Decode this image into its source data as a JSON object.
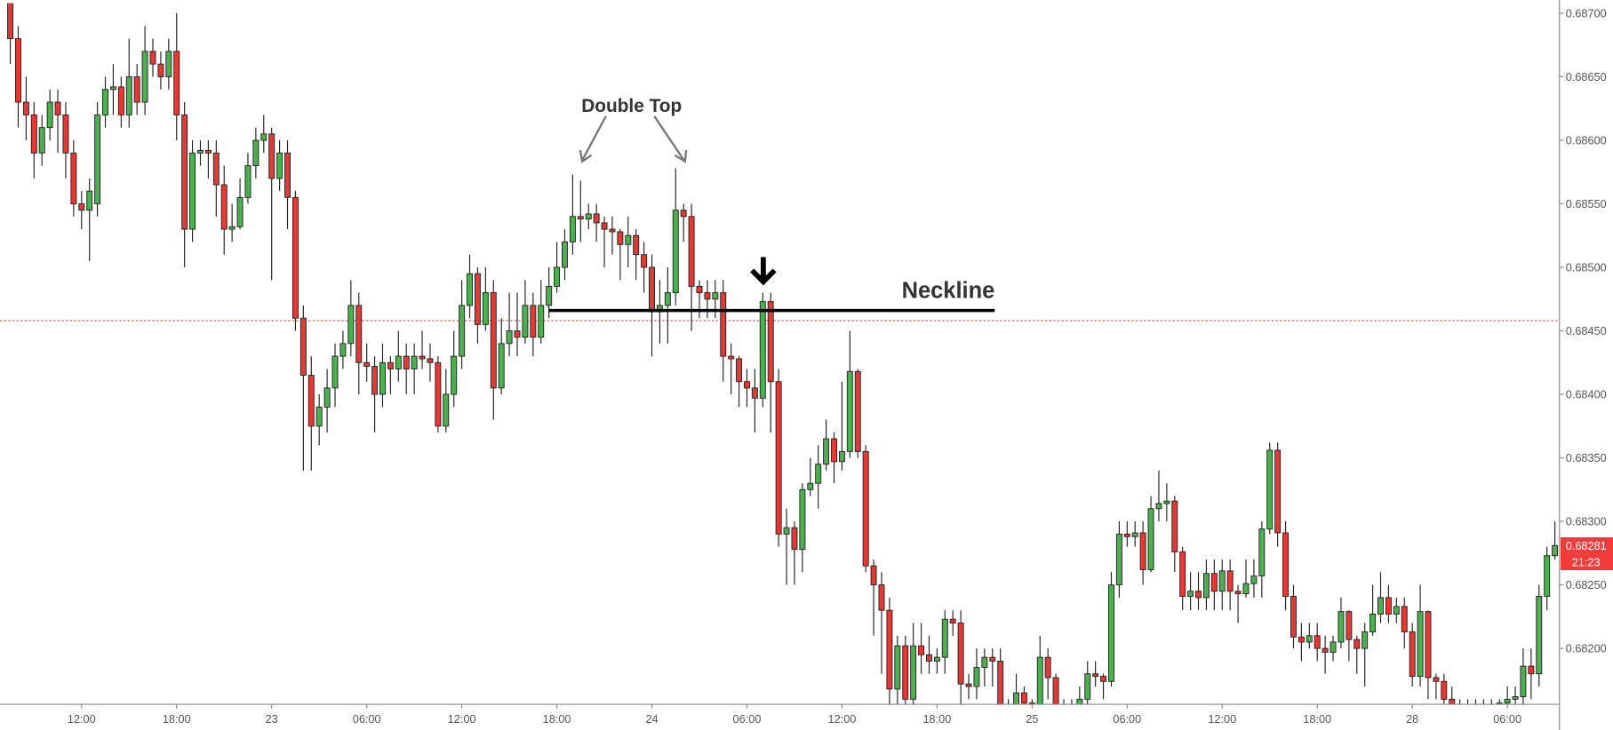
{
  "chart_data": {
    "type": "candlestick",
    "annotations": {
      "double_top": "Double Top",
      "neckline": "Neckline"
    },
    "neckline_level": 0.68466,
    "reference_line": 0.68458,
    "price_tag": {
      "value": 0.68281,
      "label": "0.68281"
    },
    "countdown": "21:23",
    "up_color": "#4caf50",
    "down_color": "#e53935",
    "ylim": [
      0.68156,
      0.68708
    ],
    "yticks": [
      {
        "value": 0.682,
        "label": "0.68200"
      },
      {
        "value": 0.6825,
        "label": "0.68250"
      },
      {
        "value": 0.683,
        "label": "0.68300"
      },
      {
        "value": 0.6835,
        "label": "0.68350"
      },
      {
        "value": 0.684,
        "label": "0.68400"
      },
      {
        "value": 0.6845,
        "label": "0.68450"
      },
      {
        "value": 0.685,
        "label": "0.68500"
      },
      {
        "value": 0.6855,
        "label": "0.68550"
      },
      {
        "value": 0.686,
        "label": "0.68600"
      },
      {
        "value": 0.6865,
        "label": "0.68650"
      },
      {
        "value": 0.687,
        "label": "0.68700"
      }
    ],
    "categories": [
      null,
      null,
      null,
      null,
      null,
      null,
      null,
      null,
      null,
      "12:00",
      null,
      null,
      null,
      null,
      null,
      null,
      null,
      null,
      null,
      null,
      null,
      "18:00",
      null,
      null,
      null,
      null,
      null,
      null,
      null,
      null,
      null,
      null,
      null,
      "23",
      null,
      null,
      null,
      null,
      null,
      null,
      null,
      null,
      null,
      null,
      null,
      "06:00",
      null,
      null,
      null,
      null,
      null,
      null,
      null,
      null,
      null,
      null,
      null,
      "12:00",
      null,
      null,
      null,
      null,
      null,
      null,
      null,
      null,
      null,
      null,
      null,
      "18:00",
      null,
      null,
      null,
      null,
      null,
      null,
      null,
      null,
      null,
      null,
      null,
      "24",
      null,
      null,
      null,
      null,
      null,
      null,
      null,
      null,
      null,
      null,
      null,
      "06:00",
      null,
      null,
      null,
      null,
      null,
      null,
      null,
      null,
      null,
      null,
      null,
      "12:00",
      null,
      null,
      null,
      null,
      null,
      null,
      null,
      null,
      null,
      null,
      null,
      "18:00",
      null,
      null,
      null,
      null,
      null,
      null,
      null,
      null,
      null,
      null,
      null,
      "25",
      null,
      null,
      null,
      null,
      null,
      null,
      null,
      null,
      null,
      null,
      null,
      "06:00",
      null,
      null,
      null,
      null,
      null,
      null,
      null,
      null,
      null,
      null,
      null,
      "12:00",
      null,
      null,
      null,
      null,
      null,
      null,
      null,
      null,
      null,
      null,
      null,
      "18:00",
      null,
      null,
      null,
      null,
      null,
      null,
      null,
      null,
      null,
      null,
      null,
      "28",
      null,
      null,
      null,
      null,
      null,
      null,
      null,
      null,
      null,
      null,
      null,
      "06:00",
      null,
      null,
      null,
      null,
      null,
      null
    ],
    "values": [
      [
        0.6871,
        0.6872,
        0.6866,
        0.6868
      ],
      [
        0.6868,
        0.6869,
        0.6861,
        0.6863
      ],
      [
        0.6863,
        0.6865,
        0.686,
        0.6862
      ],
      [
        0.6862,
        0.6863,
        0.6857,
        0.6859
      ],
      [
        0.6859,
        0.6862,
        0.6858,
        0.6861
      ],
      [
        0.6861,
        0.6864,
        0.686,
        0.6863
      ],
      [
        0.6863,
        0.6864,
        0.6859,
        0.6862
      ],
      [
        0.6862,
        0.6863,
        0.6857,
        0.6859
      ],
      [
        0.6859,
        0.686,
        0.6854,
        0.6855
      ],
      [
        0.6855,
        0.6856,
        0.6853,
        0.68545
      ],
      [
        0.68545,
        0.6857,
        0.68505,
        0.6856
      ],
      [
        0.6855,
        0.6863,
        0.6854,
        0.6862
      ],
      [
        0.6862,
        0.6865,
        0.6861,
        0.6864
      ],
      [
        0.6864,
        0.6866,
        0.6862,
        0.68642
      ],
      [
        0.68642,
        0.6865,
        0.6861,
        0.6862
      ],
      [
        0.6862,
        0.6868,
        0.6861,
        0.6865
      ],
      [
        0.6865,
        0.6866,
        0.6862,
        0.6863
      ],
      [
        0.6863,
        0.6869,
        0.6862,
        0.6867
      ],
      [
        0.6867,
        0.6868,
        0.6865,
        0.6866
      ],
      [
        0.6866,
        0.6867,
        0.6864,
        0.6865
      ],
      [
        0.6865,
        0.6868,
        0.6864,
        0.6867
      ],
      [
        0.6867,
        0.687,
        0.686,
        0.6862
      ],
      [
        0.6862,
        0.6863,
        0.685,
        0.6853
      ],
      [
        0.6853,
        0.686,
        0.6852,
        0.6859
      ],
      [
        0.6859,
        0.686,
        0.6858,
        0.68592
      ],
      [
        0.68592,
        0.686,
        0.6857,
        0.6859
      ],
      [
        0.6859,
        0.686,
        0.6854,
        0.68565
      ],
      [
        0.68565,
        0.6858,
        0.6851,
        0.6853
      ],
      [
        0.6853,
        0.6855,
        0.6852,
        0.68532
      ],
      [
        0.68532,
        0.6857,
        0.6853,
        0.68555
      ],
      [
        0.68555,
        0.6859,
        0.6855,
        0.6858
      ],
      [
        0.6858,
        0.6861,
        0.6857,
        0.686
      ],
      [
        0.686,
        0.6862,
        0.6859,
        0.68605
      ],
      [
        0.68605,
        0.6861,
        0.6849,
        0.6857
      ],
      [
        0.6857,
        0.686,
        0.6856,
        0.6859
      ],
      [
        0.6859,
        0.686,
        0.6853,
        0.68555
      ],
      [
        0.68555,
        0.6856,
        0.6845,
        0.6846
      ],
      [
        0.6846,
        0.6847,
        0.6834,
        0.68415
      ],
      [
        0.68415,
        0.6843,
        0.6834,
        0.68375
      ],
      [
        0.68375,
        0.684,
        0.6836,
        0.6839
      ],
      [
        0.6839,
        0.6842,
        0.6837,
        0.68405
      ],
      [
        0.68405,
        0.6844,
        0.6839,
        0.6843
      ],
      [
        0.6843,
        0.6845,
        0.6842,
        0.6844
      ],
      [
        0.6844,
        0.6849,
        0.6843,
        0.6847
      ],
      [
        0.6847,
        0.6848,
        0.684,
        0.68425
      ],
      [
        0.68425,
        0.6844,
        0.6841,
        0.68422
      ],
      [
        0.68422,
        0.6843,
        0.6837,
        0.684
      ],
      [
        0.684,
        0.6844,
        0.6839,
        0.68425
      ],
      [
        0.68425,
        0.6843,
        0.684,
        0.6842
      ],
      [
        0.6842,
        0.6845,
        0.6841,
        0.6843
      ],
      [
        0.6843,
        0.6844,
        0.684,
        0.6842
      ],
      [
        0.6842,
        0.6844,
        0.684,
        0.6843
      ],
      [
        0.6843,
        0.6845,
        0.6842,
        0.68428
      ],
      [
        0.68428,
        0.6844,
        0.6841,
        0.68425
      ],
      [
        0.68425,
        0.6843,
        0.6837,
        0.68375
      ],
      [
        0.68375,
        0.6842,
        0.6837,
        0.684
      ],
      [
        0.684,
        0.6845,
        0.6839,
        0.6843
      ],
      [
        0.6843,
        0.6849,
        0.6842,
        0.6847
      ],
      [
        0.6847,
        0.6851,
        0.6846,
        0.68495
      ],
      [
        0.68495,
        0.685,
        0.6844,
        0.68455
      ],
      [
        0.68455,
        0.685,
        0.6845,
        0.6848
      ],
      [
        0.6848,
        0.6849,
        0.6838,
        0.68405
      ],
      [
        0.68405,
        0.6846,
        0.684,
        0.6844
      ],
      [
        0.6844,
        0.6848,
        0.6843,
        0.6845
      ],
      [
        0.6845,
        0.6848,
        0.6843,
        0.68445
      ],
      [
        0.68445,
        0.6849,
        0.6844,
        0.6847
      ],
      [
        0.6847,
        0.6848,
        0.6843,
        0.68445
      ],
      [
        0.68445,
        0.6849,
        0.6844,
        0.6847
      ],
      [
        0.6847,
        0.685,
        0.6846,
        0.68485
      ],
      [
        0.68485,
        0.6852,
        0.6848,
        0.685
      ],
      [
        0.685,
        0.6853,
        0.6849,
        0.6852
      ],
      [
        0.6852,
        0.68573,
        0.6851,
        0.6854
      ],
      [
        0.6854,
        0.68568,
        0.6852,
        0.68538
      ],
      [
        0.68538,
        0.6855,
        0.6853,
        0.68542
      ],
      [
        0.68542,
        0.6855,
        0.6852,
        0.68535
      ],
      [
        0.68535,
        0.6854,
        0.685,
        0.6853
      ],
      [
        0.6853,
        0.6854,
        0.6851,
        0.68528
      ],
      [
        0.68528,
        0.6853,
        0.6849,
        0.68518
      ],
      [
        0.68518,
        0.6854,
        0.685,
        0.68525
      ],
      [
        0.68525,
        0.6853,
        0.6849,
        0.6851
      ],
      [
        0.6851,
        0.6852,
        0.6848,
        0.685
      ],
      [
        0.685,
        0.6851,
        0.6843,
        0.68465
      ],
      [
        0.68465,
        0.6849,
        0.6844,
        0.6847
      ],
      [
        0.6847,
        0.685,
        0.6844,
        0.6848
      ],
      [
        0.6848,
        0.68578,
        0.6847,
        0.68545
      ],
      [
        0.68545,
        0.6855,
        0.6852,
        0.6854
      ],
      [
        0.6854,
        0.6855,
        0.6845,
        0.68485
      ],
      [
        0.68485,
        0.6849,
        0.6846,
        0.6848
      ],
      [
        0.6848,
        0.6849,
        0.6846,
        0.68475
      ],
      [
        0.68475,
        0.6849,
        0.6846,
        0.6848
      ],
      [
        0.6848,
        0.6849,
        0.6841,
        0.6843
      ],
      [
        0.6843,
        0.6844,
        0.684,
        0.68428
      ],
      [
        0.68428,
        0.6843,
        0.6839,
        0.6841
      ],
      [
        0.6841,
        0.6842,
        0.6839,
        0.68405
      ],
      [
        0.68405,
        0.6842,
        0.6837,
        0.68397
      ],
      [
        0.68397,
        0.6848,
        0.6839,
        0.68473
      ],
      [
        0.68473,
        0.6848,
        0.6837,
        0.6841
      ],
      [
        0.6841,
        0.6842,
        0.6828,
        0.6829
      ],
      [
        0.6829,
        0.6831,
        0.6825,
        0.68295
      ],
      [
        0.68295,
        0.683,
        0.6825,
        0.68278
      ],
      [
        0.68278,
        0.6833,
        0.6826,
        0.68325
      ],
      [
        0.68325,
        0.6835,
        0.6832,
        0.6833
      ],
      [
        0.6833,
        0.6836,
        0.6831,
        0.68345
      ],
      [
        0.68345,
        0.6838,
        0.6834,
        0.68365
      ],
      [
        0.68365,
        0.6837,
        0.6833,
        0.68347
      ],
      [
        0.68347,
        0.6841,
        0.6834,
        0.68355
      ],
      [
        0.68355,
        0.6845,
        0.6835,
        0.68418
      ],
      [
        0.68418,
        0.6842,
        0.6835,
        0.68355
      ],
      [
        0.68355,
        0.6836,
        0.6826,
        0.68265
      ],
      [
        0.68265,
        0.6827,
        0.6821,
        0.6825
      ],
      [
        0.6825,
        0.6826,
        0.6818,
        0.6823
      ],
      [
        0.6823,
        0.6824,
        0.6815,
        0.68168
      ],
      [
        0.68168,
        0.6821,
        0.6815,
        0.68202
      ],
      [
        0.68202,
        0.6821,
        0.6815,
        0.6816
      ],
      [
        0.6816,
        0.6822,
        0.6815,
        0.68202
      ],
      [
        0.68202,
        0.6822,
        0.6818,
        0.68195
      ],
      [
        0.68195,
        0.6821,
        0.6818,
        0.6819
      ],
      [
        0.6819,
        0.682,
        0.6818,
        0.68193
      ],
      [
        0.68193,
        0.6823,
        0.6818,
        0.68223
      ],
      [
        0.68223,
        0.6823,
        0.6821,
        0.6822
      ],
      [
        0.6822,
        0.6823,
        0.6815,
        0.68172
      ],
      [
        0.68172,
        0.6818,
        0.6816,
        0.6817
      ],
      [
        0.6817,
        0.682,
        0.6816,
        0.68185
      ],
      [
        0.68185,
        0.682,
        0.6817,
        0.68193
      ],
      [
        0.68193,
        0.682,
        0.6817,
        0.6819
      ],
      [
        0.6819,
        0.682,
        0.6815,
        0.68153
      ],
      [
        0.68153,
        0.6816,
        0.6815,
        0.68151
      ],
      [
        0.68151,
        0.6818,
        0.6815,
        0.68165
      ],
      [
        0.68165,
        0.6817,
        0.6815,
        0.68157
      ],
      [
        0.68157,
        0.6816,
        0.6815,
        0.68153
      ],
      [
        0.68153,
        0.6821,
        0.6815,
        0.68193
      ],
      [
        0.68193,
        0.682,
        0.6816,
        0.68177
      ],
      [
        0.68177,
        0.6818,
        0.6815,
        0.68155
      ],
      [
        0.68155,
        0.6816,
        0.6815,
        0.68152
      ],
      [
        0.68152,
        0.6816,
        0.6815,
        0.68154
      ],
      [
        0.68154,
        0.6817,
        0.6815,
        0.6816
      ],
      [
        0.6816,
        0.6819,
        0.6815,
        0.6818
      ],
      [
        0.6818,
        0.6819,
        0.6817,
        0.68178
      ],
      [
        0.68178,
        0.6818,
        0.6816,
        0.68174
      ],
      [
        0.68174,
        0.6826,
        0.6817,
        0.6825
      ],
      [
        0.6825,
        0.683,
        0.6824,
        0.6829
      ],
      [
        0.6829,
        0.683,
        0.6828,
        0.68288
      ],
      [
        0.68288,
        0.683,
        0.6828,
        0.68291
      ],
      [
        0.68291,
        0.683,
        0.6825,
        0.68262
      ],
      [
        0.68262,
        0.6832,
        0.6826,
        0.6831
      ],
      [
        0.6831,
        0.6834,
        0.683,
        0.68314
      ],
      [
        0.68314,
        0.6833,
        0.683,
        0.68316
      ],
      [
        0.68316,
        0.6832,
        0.6826,
        0.68276
      ],
      [
        0.68276,
        0.6828,
        0.6823,
        0.68241
      ],
      [
        0.68241,
        0.6826,
        0.6823,
        0.68245
      ],
      [
        0.68245,
        0.6826,
        0.6823,
        0.6824
      ],
      [
        0.6824,
        0.6827,
        0.6823,
        0.68259
      ],
      [
        0.68259,
        0.6827,
        0.6823,
        0.68245
      ],
      [
        0.68245,
        0.6827,
        0.6823,
        0.68261
      ],
      [
        0.68261,
        0.6827,
        0.6823,
        0.68245
      ],
      [
        0.68245,
        0.6825,
        0.6822,
        0.68243
      ],
      [
        0.68243,
        0.6827,
        0.6824,
        0.68251
      ],
      [
        0.68251,
        0.6827,
        0.6824,
        0.68257
      ],
      [
        0.68257,
        0.683,
        0.6824,
        0.68294
      ],
      [
        0.68294,
        0.68362,
        0.6829,
        0.68356
      ],
      [
        0.68356,
        0.68362,
        0.6828,
        0.68291
      ],
      [
        0.68291,
        0.683,
        0.6823,
        0.68241
      ],
      [
        0.68241,
        0.6825,
        0.682,
        0.68209
      ],
      [
        0.68209,
        0.6822,
        0.6819,
        0.68205
      ],
      [
        0.68205,
        0.6822,
        0.682,
        0.6821
      ],
      [
        0.6821,
        0.6822,
        0.6819,
        0.682
      ],
      [
        0.682,
        0.6821,
        0.6818,
        0.68197
      ],
      [
        0.68197,
        0.6821,
        0.6819,
        0.68205
      ],
      [
        0.68205,
        0.6824,
        0.682,
        0.68229
      ],
      [
        0.68229,
        0.6823,
        0.6819,
        0.68207
      ],
      [
        0.68207,
        0.6821,
        0.6818,
        0.682
      ],
      [
        0.682,
        0.6822,
        0.6817,
        0.68213
      ],
      [
        0.68213,
        0.6825,
        0.6821,
        0.68227
      ],
      [
        0.68227,
        0.6826,
        0.6822,
        0.6824
      ],
      [
        0.6824,
        0.6825,
        0.6822,
        0.68227
      ],
      [
        0.68227,
        0.6824,
        0.6822,
        0.68233
      ],
      [
        0.68233,
        0.6824,
        0.682,
        0.68213
      ],
      [
        0.68213,
        0.6822,
        0.6817,
        0.68178
      ],
      [
        0.68178,
        0.6825,
        0.6817,
        0.68229
      ],
      [
        0.68229,
        0.6823,
        0.6816,
        0.68177
      ],
      [
        0.68177,
        0.6818,
        0.6816,
        0.68174
      ],
      [
        0.68174,
        0.6818,
        0.6815,
        0.6816
      ],
      [
        0.6816,
        0.6817,
        0.6815,
        0.68154
      ],
      [
        0.68154,
        0.6816,
        0.6815,
        0.68152
      ],
      [
        0.68152,
        0.6816,
        0.6815,
        0.68153
      ],
      [
        0.68153,
        0.6816,
        0.6815,
        0.68155
      ],
      [
        0.68155,
        0.6816,
        0.6815,
        0.68154
      ],
      [
        0.68154,
        0.6816,
        0.6815,
        0.68155
      ],
      [
        0.68155,
        0.6816,
        0.6815,
        0.68157
      ],
      [
        0.68157,
        0.6817,
        0.6815,
        0.6816
      ],
      [
        0.6816,
        0.6817,
        0.6815,
        0.68162
      ],
      [
        0.68162,
        0.682,
        0.6815,
        0.68186
      ],
      [
        0.68186,
        0.682,
        0.6816,
        0.6818
      ],
      [
        0.6818,
        0.6825,
        0.6817,
        0.68241
      ],
      [
        0.68241,
        0.6828,
        0.6823,
        0.68273
      ],
      [
        0.68273,
        0.683,
        0.6827,
        0.68281
      ]
    ]
  }
}
